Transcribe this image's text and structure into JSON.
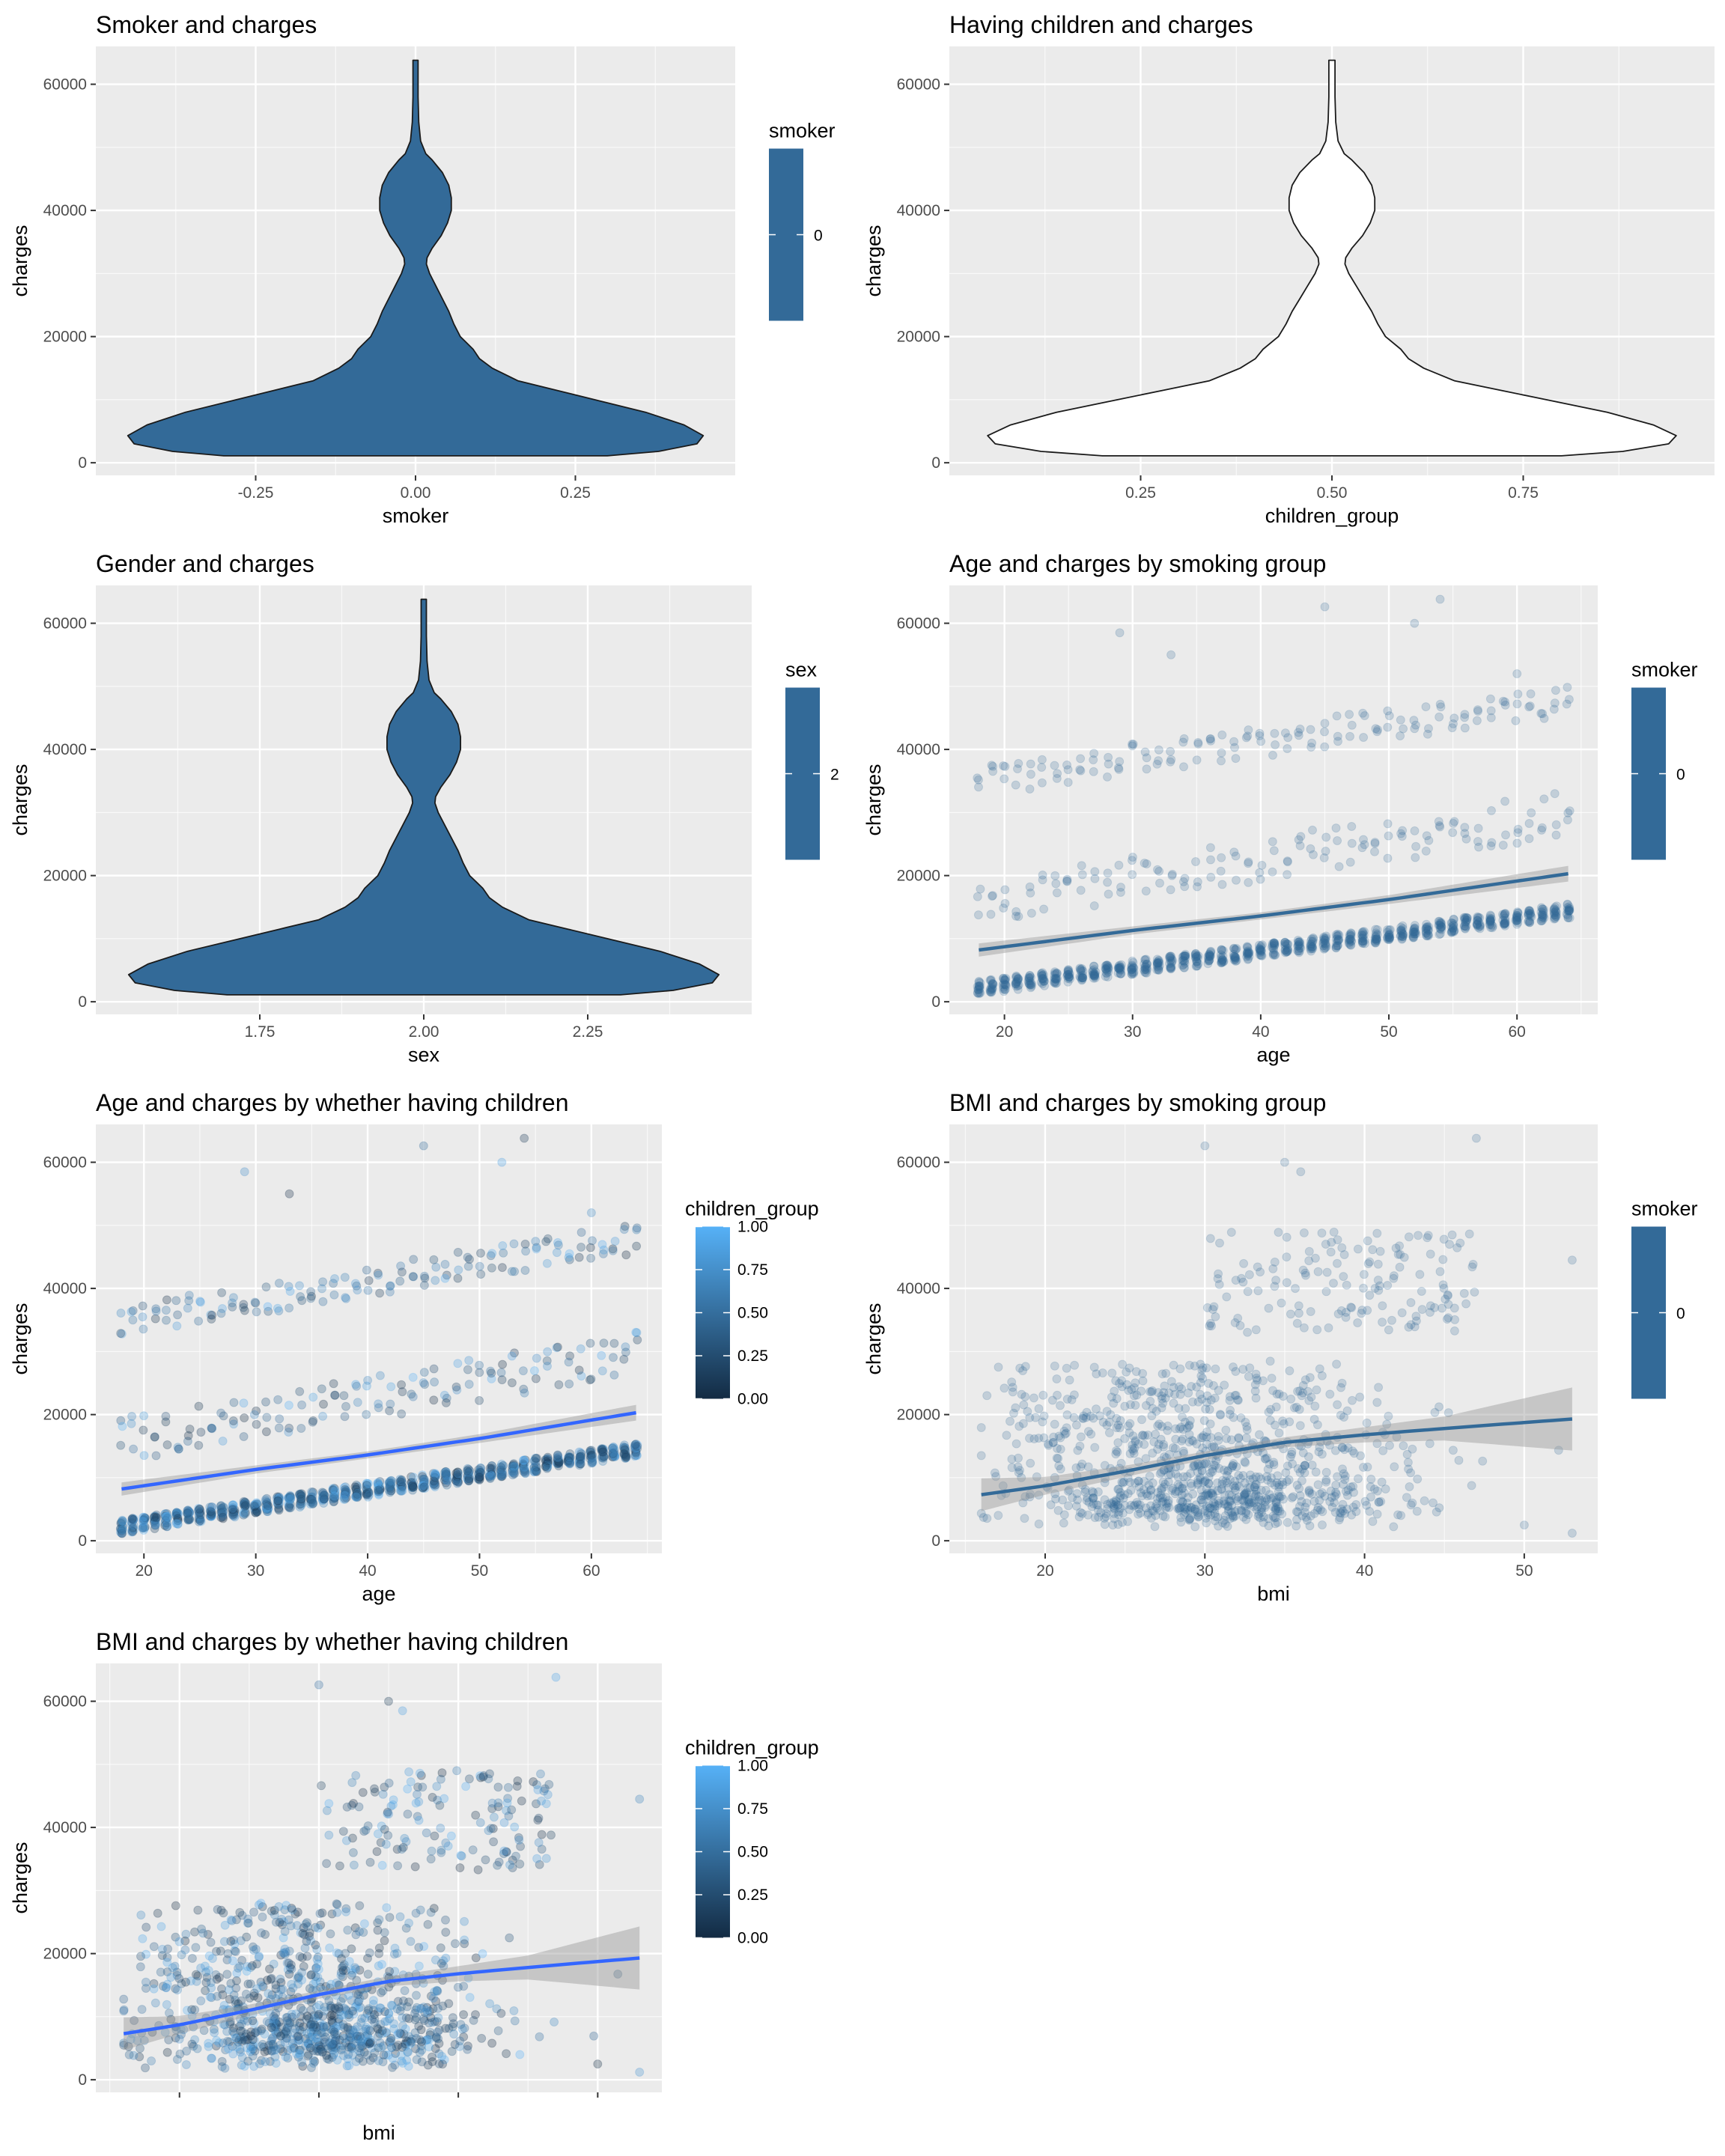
{
  "colors": {
    "panel_bg": "#ebebeb",
    "grid_major": "#ffffff",
    "fill_blue": "#336a98",
    "trend_blue": "#3366ff",
    "ci_grey": "#999999",
    "light_blue": "#56b1f7",
    "dark_blue": "#132b43"
  },
  "chart_data": [
    {
      "id": "p1",
      "type": "violin",
      "title": "Smoker and charges",
      "xlabel": "smoker",
      "ylabel": "charges",
      "xlim": [
        -0.5,
        0.5
      ],
      "ylim": [
        -2000,
        66000
      ],
      "x_ticks": [
        -0.25,
        0.0,
        0.25
      ],
      "x_tick_labels": [
        "-0.25",
        "0.00",
        "0.25"
      ],
      "y_ticks": [
        0,
        20000,
        40000,
        60000
      ],
      "y_tick_labels": [
        "0",
        "20000",
        "40000",
        "60000"
      ],
      "violin": {
        "center": 0,
        "max_halfwidth": 0.45,
        "filled": true,
        "profile": [
          [
            1100,
            0.3
          ],
          [
            1800,
            0.38
          ],
          [
            3000,
            0.44
          ],
          [
            4300,
            0.45
          ],
          [
            6000,
            0.42
          ],
          [
            8000,
            0.36
          ],
          [
            10000,
            0.28
          ],
          [
            11500,
            0.22
          ],
          [
            13000,
            0.16
          ],
          [
            15000,
            0.12
          ],
          [
            16500,
            0.1
          ],
          [
            18000,
            0.09
          ],
          [
            20000,
            0.07
          ],
          [
            22000,
            0.06
          ],
          [
            24000,
            0.052
          ],
          [
            26000,
            0.042
          ],
          [
            28000,
            0.032
          ],
          [
            30000,
            0.022
          ],
          [
            31500,
            0.017
          ],
          [
            32500,
            0.018
          ],
          [
            34000,
            0.026
          ],
          [
            36000,
            0.04
          ],
          [
            38000,
            0.05
          ],
          [
            40000,
            0.056
          ],
          [
            42000,
            0.056
          ],
          [
            44000,
            0.052
          ],
          [
            46000,
            0.042
          ],
          [
            48000,
            0.026
          ],
          [
            49000,
            0.016
          ],
          [
            51000,
            0.008
          ],
          [
            54000,
            0.005
          ],
          [
            58000,
            0.004
          ],
          [
            63800,
            0.004
          ]
        ]
      },
      "legend": {
        "title": "smoker",
        "type": "colorbar_single",
        "labels": [
          "0"
        ],
        "color": "#336a98"
      }
    },
    {
      "id": "p2",
      "type": "violin",
      "title": "Having children and charges",
      "xlabel": "children_group",
      "ylabel": "charges",
      "xlim": [
        0.0,
        1.0
      ],
      "ylim": [
        -2000,
        66000
      ],
      "x_ticks": [
        0.25,
        0.5,
        0.75
      ],
      "x_tick_labels": [
        "0.25",
        "0.50",
        "0.75"
      ],
      "y_ticks": [
        0,
        20000,
        40000,
        60000
      ],
      "y_tick_labels": [
        "0",
        "20000",
        "40000",
        "60000"
      ],
      "violin": {
        "center": 0.5,
        "max_halfwidth": 0.45,
        "filled": false,
        "profile": [
          [
            1100,
            0.3
          ],
          [
            1800,
            0.38
          ],
          [
            3000,
            0.44
          ],
          [
            4300,
            0.45
          ],
          [
            6000,
            0.42
          ],
          [
            8000,
            0.36
          ],
          [
            10000,
            0.28
          ],
          [
            11500,
            0.22
          ],
          [
            13000,
            0.16
          ],
          [
            15000,
            0.12
          ],
          [
            16500,
            0.1
          ],
          [
            18000,
            0.09
          ],
          [
            20000,
            0.07
          ],
          [
            22000,
            0.06
          ],
          [
            24000,
            0.052
          ],
          [
            26000,
            0.042
          ],
          [
            28000,
            0.032
          ],
          [
            30000,
            0.022
          ],
          [
            31500,
            0.017
          ],
          [
            32500,
            0.018
          ],
          [
            34000,
            0.026
          ],
          [
            36000,
            0.04
          ],
          [
            38000,
            0.05
          ],
          [
            40000,
            0.056
          ],
          [
            42000,
            0.056
          ],
          [
            44000,
            0.052
          ],
          [
            46000,
            0.042
          ],
          [
            48000,
            0.026
          ],
          [
            49000,
            0.016
          ],
          [
            51000,
            0.008
          ],
          [
            54000,
            0.005
          ],
          [
            58000,
            0.004
          ],
          [
            63800,
            0.004
          ]
        ]
      },
      "legend": null
    },
    {
      "id": "p3",
      "type": "violin",
      "title": "Gender and charges",
      "xlabel": "sex",
      "ylabel": "charges",
      "xlim": [
        1.5,
        2.5
      ],
      "ylim": [
        -2000,
        66000
      ],
      "x_ticks": [
        1.75,
        2.0,
        2.25
      ],
      "x_tick_labels": [
        "1.75",
        "2.00",
        "2.25"
      ],
      "y_ticks": [
        0,
        20000,
        40000,
        60000
      ],
      "y_tick_labels": [
        "0",
        "20000",
        "40000",
        "60000"
      ],
      "violin": {
        "center": 2.0,
        "max_halfwidth": 0.45,
        "filled": true,
        "profile": [
          [
            1100,
            0.3
          ],
          [
            1800,
            0.38
          ],
          [
            3000,
            0.44
          ],
          [
            4300,
            0.45
          ],
          [
            6000,
            0.42
          ],
          [
            8000,
            0.36
          ],
          [
            10000,
            0.28
          ],
          [
            11500,
            0.22
          ],
          [
            13000,
            0.16
          ],
          [
            15000,
            0.12
          ],
          [
            16500,
            0.1
          ],
          [
            18000,
            0.09
          ],
          [
            20000,
            0.07
          ],
          [
            22000,
            0.06
          ],
          [
            24000,
            0.052
          ],
          [
            26000,
            0.042
          ],
          [
            28000,
            0.032
          ],
          [
            30000,
            0.022
          ],
          [
            31500,
            0.017
          ],
          [
            32500,
            0.018
          ],
          [
            34000,
            0.026
          ],
          [
            36000,
            0.04
          ],
          [
            38000,
            0.05
          ],
          [
            40000,
            0.056
          ],
          [
            42000,
            0.056
          ],
          [
            44000,
            0.052
          ],
          [
            46000,
            0.042
          ],
          [
            48000,
            0.026
          ],
          [
            49000,
            0.016
          ],
          [
            51000,
            0.008
          ],
          [
            54000,
            0.005
          ],
          [
            58000,
            0.004
          ],
          [
            63800,
            0.004
          ]
        ]
      },
      "legend": {
        "title": "sex",
        "type": "colorbar_single",
        "labels": [
          "2"
        ],
        "color": "#336a98"
      }
    },
    {
      "id": "p4",
      "type": "scatter",
      "title": "Age and charges by smoking group",
      "xlabel": "age",
      "ylabel": "charges",
      "xlim": [
        15.7,
        66.3
      ],
      "ylim": [
        -2000,
        66000
      ],
      "x_ticks": [
        20,
        30,
        40,
        50,
        60
      ],
      "x_tick_labels": [
        "20",
        "30",
        "40",
        "50",
        "60"
      ],
      "y_ticks": [
        0,
        20000,
        40000,
        60000
      ],
      "y_tick_labels": [
        "0",
        "20000",
        "40000",
        "60000"
      ],
      "color_mode": "single",
      "point_color": "#336a98",
      "point_alpha": 0.22,
      "trend": {
        "x": [
          18,
          30,
          40,
          50,
          64
        ],
        "y": [
          8200,
          11300,
          13600,
          16200,
          20300
        ],
        "ci_halfwidth": [
          1050,
          650,
          560,
          700,
          1250
        ],
        "color": "#336a98"
      },
      "legend": {
        "title": "smoker",
        "type": "colorbar_single",
        "labels": [
          "0"
        ],
        "color": "#336a98"
      }
    },
    {
      "id": "p5",
      "type": "scatter",
      "title": "Age and charges by whether having children",
      "xlabel": "age",
      "ylabel": "charges",
      "xlim": [
        15.7,
        66.3
      ],
      "ylim": [
        -2000,
        66000
      ],
      "x_ticks": [
        20,
        30,
        40,
        50,
        60
      ],
      "x_tick_labels": [
        "20",
        "30",
        "40",
        "50",
        "60"
      ],
      "y_ticks": [
        0,
        20000,
        40000,
        60000
      ],
      "y_tick_labels": [
        "0",
        "20000",
        "40000",
        "60000"
      ],
      "color_mode": "gradient",
      "point_alpha": 0.3,
      "trend": {
        "x": [
          18,
          30,
          40,
          50,
          64
        ],
        "y": [
          8200,
          11300,
          13600,
          16200,
          20300
        ],
        "ci_halfwidth": [
          1050,
          650,
          560,
          700,
          1250
        ],
        "color": "#3366ff"
      },
      "legend": {
        "title": "children_group",
        "type": "colorbar_gradient",
        "labels": [
          "1.00",
          "0.75",
          "0.50",
          "0.25",
          "0.00"
        ],
        "low": "#132b43",
        "high": "#56b1f7"
      }
    },
    {
      "id": "p6",
      "type": "scatter",
      "title": "BMI and charges by smoking group",
      "xlabel": "bmi",
      "ylabel": "charges",
      "xlim": [
        14.0,
        54.6
      ],
      "ylim": [
        -2000,
        66000
      ],
      "x_ticks": [
        20,
        30,
        40,
        50
      ],
      "x_tick_labels": [
        "20",
        "30",
        "40",
        "50"
      ],
      "y_ticks": [
        0,
        20000,
        40000,
        60000
      ],
      "y_tick_labels": [
        "0",
        "20000",
        "40000",
        "60000"
      ],
      "color_mode": "single",
      "point_color": "#336a98",
      "point_alpha": 0.22,
      "trend": {
        "x": [
          16,
          20,
          25,
          30,
          35,
          40,
          45,
          53
        ],
        "y": [
          7300,
          8700,
          11000,
          13500,
          15600,
          16800,
          17800,
          19300
        ],
        "ci_halfwidth": [
          2600,
          1400,
          900,
          650,
          800,
          1200,
          1900,
          5000
        ],
        "color": "#336a98"
      },
      "legend": {
        "title": "smoker",
        "type": "colorbar_single",
        "labels": [
          "0"
        ],
        "color": "#336a98"
      }
    },
    {
      "id": "p7",
      "type": "scatter",
      "title": "BMI and charges by whether having children",
      "xlabel": "bmi",
      "ylabel": "charges",
      "xlim": [
        14.0,
        54.6
      ],
      "ylim": [
        -2000,
        66000
      ],
      "x_ticks": [
        20,
        30,
        40,
        50
      ],
      "x_tick_labels": [],
      "y_ticks": [
        0,
        20000,
        40000,
        60000
      ],
      "y_tick_labels": [
        "0",
        "20000",
        "40000",
        "60000"
      ],
      "color_mode": "gradient",
      "point_alpha": 0.3,
      "trend": {
        "x": [
          16,
          20,
          25,
          30,
          35,
          40,
          45,
          53
        ],
        "y": [
          7300,
          8700,
          11000,
          13500,
          15600,
          16800,
          17800,
          19300
        ],
        "ci_halfwidth": [
          2600,
          1400,
          900,
          650,
          800,
          1200,
          1900,
          5000
        ],
        "color": "#3366ff"
      },
      "legend": {
        "title": "children_group",
        "type": "colorbar_gradient",
        "labels": [
          "1.00",
          "0.75",
          "0.50",
          "0.25",
          "0.00"
        ],
        "low": "#132b43",
        "high": "#56b1f7"
      }
    }
  ]
}
